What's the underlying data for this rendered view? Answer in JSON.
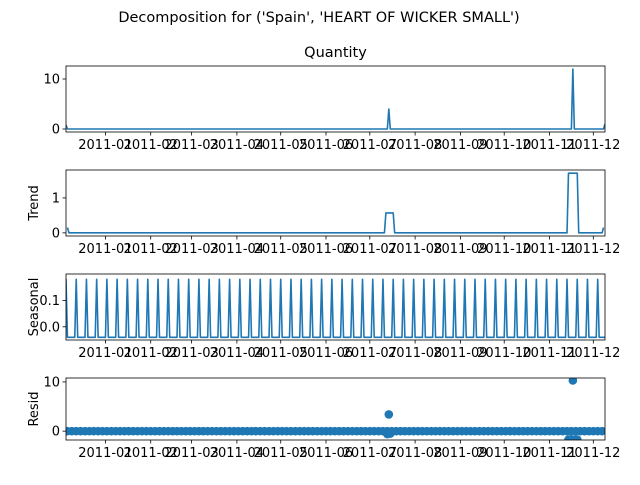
{
  "figure": {
    "suptitle": "Decomposition for ('Spain', 'HEART OF WICKER SMALL')"
  },
  "chart_data": [
    {
      "type": "line",
      "title": "Quantity",
      "ylabel": "",
      "xlabel": "",
      "x_range": [
        "2010-12-05",
        "2011-12-09"
      ],
      "ylim": [
        -0.6,
        12.6
      ],
      "yticks": [
        0,
        10
      ],
      "xtick_labels": [
        "2011-01",
        "2011-02",
        "2011-03",
        "2011-04",
        "2011-05",
        "2011-06",
        "2011-07",
        "2011-08",
        "2011-09",
        "2011-10",
        "2011-11",
        "2011-12"
      ],
      "series": [
        {
          "color": "#1f77b4",
          "points": [
            [
              "2010-12-05",
              0.8
            ],
            [
              "2010-12-06",
              0
            ],
            [
              "2011-07-13",
              0
            ],
            [
              "2011-07-14",
              4
            ],
            [
              "2011-07-15",
              0
            ],
            [
              "2011-11-16",
              0
            ],
            [
              "2011-11-17",
              12
            ],
            [
              "2011-11-18",
              0
            ],
            [
              "2011-12-08",
              0
            ],
            [
              "2011-12-09",
              1
            ]
          ]
        }
      ]
    },
    {
      "type": "line",
      "title": "",
      "ylabel": "Trend",
      "xlabel": "",
      "x_range": [
        "2010-12-05",
        "2011-12-09"
      ],
      "ylim": [
        -0.09,
        1.8
      ],
      "yticks": [
        0,
        1
      ],
      "xtick_labels": [
        "2011-01",
        "2011-02",
        "2011-03",
        "2011-04",
        "2011-05",
        "2011-06",
        "2011-07",
        "2011-08",
        "2011-09",
        "2011-10",
        "2011-11",
        "2011-12"
      ],
      "series": [
        {
          "color": "#1f77b4",
          "points": [
            [
              "2010-12-06",
              0.15
            ],
            [
              "2010-12-07",
              0
            ],
            [
              "2011-07-11",
              0
            ],
            [
              "2011-07-12",
              0.57
            ],
            [
              "2011-07-17",
              0.57
            ],
            [
              "2011-07-18",
              0
            ],
            [
              "2011-11-13",
              0
            ],
            [
              "2011-11-14",
              1.71
            ],
            [
              "2011-11-20",
              1.71
            ],
            [
              "2011-11-21",
              0
            ],
            [
              "2011-12-07",
              0
            ],
            [
              "2011-12-08",
              0.15
            ]
          ]
        }
      ]
    },
    {
      "type": "line",
      "title": "",
      "ylabel": "Seasonal",
      "xlabel": "",
      "x_range": [
        "2010-12-05",
        "2011-12-09"
      ],
      "ylim": [
        -0.05,
        0.2
      ],
      "yticks": [
        0.0,
        0.1
      ],
      "xtick_labels": [
        "2011-01",
        "2011-02",
        "2011-03",
        "2011-04",
        "2011-05",
        "2011-06",
        "2011-07",
        "2011-08",
        "2011-09",
        "2011-10",
        "2011-11",
        "2011-12"
      ],
      "pattern": {
        "period_days": 7,
        "start": "2010-12-05",
        "high": 0.18,
        "low": -0.04,
        "high_day_index": 0
      },
      "series": [
        {
          "color": "#1f77b4"
        }
      ]
    },
    {
      "type": "scatter",
      "title": "",
      "ylabel": "Resid",
      "xlabel": "",
      "x_range": [
        "2010-12-05",
        "2011-12-09"
      ],
      "ylim": [
        -1.8,
        10.8
      ],
      "yticks": [
        0,
        10
      ],
      "xtick_labels": [
        "2011-01",
        "2011-02",
        "2011-03",
        "2011-04",
        "2011-05",
        "2011-06",
        "2011-07",
        "2011-08",
        "2011-09",
        "2011-10",
        "2011-11",
        "2011-12"
      ],
      "baseline": {
        "step_days": 3,
        "value": 0
      },
      "outliers": [
        {
          "x": "2011-07-14",
          "y": 3.4
        },
        {
          "x": "2011-07-13",
          "y": -0.6
        },
        {
          "x": "2011-07-15",
          "y": -0.5
        },
        {
          "x": "2011-11-17",
          "y": 10.3
        },
        {
          "x": "2011-11-14",
          "y": -1.7
        },
        {
          "x": "2011-11-15",
          "y": -1.7
        },
        {
          "x": "2011-11-16",
          "y": -1.7
        },
        {
          "x": "2011-11-18",
          "y": -1.7
        },
        {
          "x": "2011-11-19",
          "y": -1.7
        },
        {
          "x": "2011-11-20",
          "y": -1.7
        }
      ],
      "series": [
        {
          "color": "#1f77b4"
        }
      ]
    }
  ]
}
